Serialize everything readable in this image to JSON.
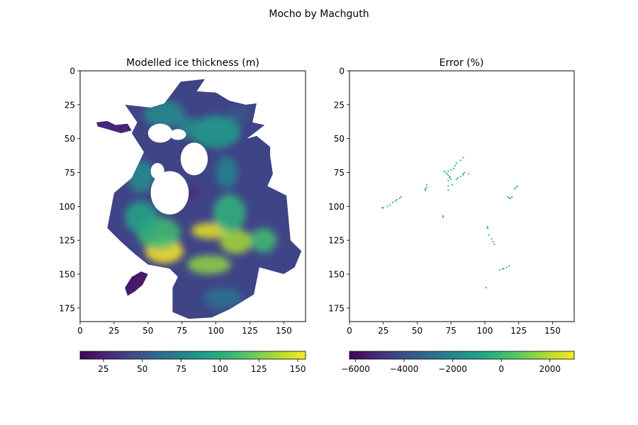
{
  "figure_title": "Mocho by Machguth",
  "colors": {
    "viridis": [
      "#440154",
      "#482878",
      "#3e4989",
      "#31688e",
      "#26828e",
      "#1f9e89",
      "#35b779",
      "#6ece58",
      "#b5de2b",
      "#fde725"
    ],
    "ice_mark": "#2db27d"
  },
  "chart_data": [
    {
      "type": "heatmap",
      "title": "Modelled ice thickness (m)",
      "xlim": [
        0,
        166
      ],
      "ylim": [
        185,
        0
      ],
      "xticks": [
        0,
        25,
        50,
        75,
        100,
        125,
        150
      ],
      "yticks": [
        0,
        25,
        50,
        75,
        100,
        125,
        150,
        175
      ],
      "colorbar": {
        "min": 10,
        "max": 155,
        "ticks": [
          25,
          50,
          75,
          100,
          125,
          150
        ],
        "tick_labels": [
          "25",
          "50",
          "75",
          "100",
          "125",
          "150"
        ]
      },
      "outline": [
        [
          42,
          38
        ],
        [
          33,
          25
        ],
        [
          52,
          27
        ],
        [
          62,
          24
        ],
        [
          74,
          8
        ],
        [
          92,
          6
        ],
        [
          86,
          15
        ],
        [
          100,
          16
        ],
        [
          110,
          22
        ],
        [
          122,
          25
        ],
        [
          130,
          24
        ],
        [
          127,
          38
        ],
        [
          136,
          40
        ],
        [
          123,
          50
        ],
        [
          130,
          48
        ],
        [
          140,
          56
        ],
        [
          140,
          63
        ],
        [
          142,
          76
        ],
        [
          138,
          85
        ],
        [
          152,
          92
        ],
        [
          155,
          125
        ],
        [
          163,
          133
        ],
        [
          158,
          145
        ],
        [
          150,
          150
        ],
        [
          132,
          145
        ],
        [
          128,
          165
        ],
        [
          110,
          176
        ],
        [
          97,
          182
        ],
        [
          80,
          183
        ],
        [
          68,
          178
        ],
        [
          68,
          160
        ],
        [
          72,
          152
        ],
        [
          66,
          146
        ],
        [
          50,
          143
        ],
        [
          40,
          135
        ],
        [
          30,
          126
        ],
        [
          20,
          116
        ],
        [
          25,
          90
        ],
        [
          38,
          79
        ],
        [
          47,
          60
        ],
        [
          38,
          46
        ]
      ],
      "holes": [
        {
          "center": [
            59,
            46
          ],
          "r": [
            9,
            7
          ]
        },
        {
          "center": [
            84,
            65
          ],
          "r": [
            10,
            12
          ]
        },
        {
          "center": [
            66,
            90
          ],
          "r": [
            14,
            16
          ]
        },
        {
          "center": [
            57,
            74
          ],
          "r": [
            5,
            6
          ]
        },
        {
          "center": [
            72,
            47
          ],
          "r": [
            6,
            4
          ]
        }
      ],
      "islands": [
        {
          "points": [
            [
              12,
              38
            ],
            [
              20,
              37
            ],
            [
              26,
              40
            ],
            [
              35,
              39
            ],
            [
              38,
              44
            ],
            [
              30,
              46
            ],
            [
              20,
              43
            ],
            [
              13,
              41
            ]
          ],
          "value": 25
        },
        {
          "points": [
            [
              38,
              152
            ],
            [
              45,
              148
            ],
            [
              50,
              150
            ],
            [
              46,
              158
            ],
            [
              40,
              163
            ],
            [
              35,
              166
            ],
            [
              33,
              160
            ]
          ],
          "value": 20
        }
      ],
      "blobs": [
        {
          "center": [
            62,
            133
          ],
          "r": [
            14,
            9
          ],
          "value": 155
        },
        {
          "center": [
            96,
            118
          ],
          "r": [
            14,
            6
          ],
          "value": 150
        },
        {
          "center": [
            115,
            126
          ],
          "r": [
            12,
            9
          ],
          "value": 135
        },
        {
          "center": [
            95,
            143
          ],
          "r": [
            16,
            7
          ],
          "value": 130
        },
        {
          "center": [
            58,
            120
          ],
          "r": [
            16,
            12
          ],
          "value": 110
        },
        {
          "center": [
            110,
            105
          ],
          "r": [
            12,
            14
          ],
          "value": 105
        },
        {
          "center": [
            135,
            125
          ],
          "r": [
            10,
            9
          ],
          "value": 110
        },
        {
          "center": [
            45,
            108
          ],
          "r": [
            12,
            12
          ],
          "value": 95
        },
        {
          "center": [
            100,
            45
          ],
          "r": [
            18,
            12
          ],
          "value": 90
        },
        {
          "center": [
            62,
            32
          ],
          "r": [
            15,
            10
          ],
          "value": 80
        },
        {
          "center": [
            80,
            42
          ],
          "r": [
            8,
            8
          ],
          "value": 80
        },
        {
          "center": [
            108,
            75
          ],
          "r": [
            8,
            12
          ],
          "value": 75
        },
        {
          "center": [
            45,
            78
          ],
          "r": [
            10,
            12
          ],
          "value": 80
        },
        {
          "center": [
            82,
            90
          ],
          "r": [
            6,
            6
          ],
          "value": 30
        },
        {
          "center": [
            105,
            168
          ],
          "r": [
            14,
            8
          ],
          "value": 65
        },
        {
          "center": [
            118,
            32
          ],
          "r": [
            8,
            6
          ],
          "value": 50
        }
      ]
    },
    {
      "type": "heatmap",
      "title": "Error (%)",
      "xlim": [
        0,
        166
      ],
      "ylim": [
        185,
        0
      ],
      "xticks": [
        0,
        25,
        50,
        75,
        100,
        125,
        150
      ],
      "yticks": [
        0,
        25,
        50,
        75,
        100,
        125,
        150,
        175
      ],
      "colorbar": {
        "min": -6250,
        "max": 3000,
        "ticks": [
          -6000,
          -4000,
          -2000,
          0,
          2000
        ],
        "tick_labels": [
          "−6000",
          "−4000",
          "−2000",
          "0",
          "2000"
        ]
      },
      "points": [
        [
          84,
          64
        ],
        [
          82,
          66
        ],
        [
          79,
          68
        ],
        [
          78,
          70
        ],
        [
          77,
          72
        ],
        [
          75,
          73
        ],
        [
          73,
          74
        ],
        [
          70,
          74
        ],
        [
          71,
          75
        ],
        [
          72,
          76
        ],
        [
          73,
          77
        ],
        [
          74,
          78
        ],
        [
          74,
          79
        ],
        [
          75,
          80
        ],
        [
          73,
          81
        ],
        [
          76,
          84
        ],
        [
          73,
          85
        ],
        [
          73,
          88
        ],
        [
          79,
          80
        ],
        [
          80,
          79
        ],
        [
          82,
          78
        ],
        [
          84,
          77
        ],
        [
          84,
          76
        ],
        [
          85,
          75
        ],
        [
          88,
          76
        ],
        [
          57,
          84
        ],
        [
          57,
          86
        ],
        [
          56,
          87
        ],
        [
          56,
          88
        ],
        [
          38,
          93
        ],
        [
          37,
          94
        ],
        [
          35,
          95
        ],
        [
          34,
          96
        ],
        [
          32,
          97
        ],
        [
          30,
          99
        ],
        [
          28,
          100
        ],
        [
          25,
          101
        ],
        [
          24,
          101
        ],
        [
          69,
          107
        ],
        [
          69,
          108
        ],
        [
          120,
          93
        ],
        [
          119,
          94
        ],
        [
          118,
          94
        ],
        [
          117,
          93
        ],
        [
          124,
          85
        ],
        [
          123,
          86
        ],
        [
          122,
          87
        ],
        [
          102,
          115
        ],
        [
          102,
          116
        ],
        [
          103,
          121
        ],
        [
          105,
          124
        ],
        [
          106,
          126
        ],
        [
          107,
          128
        ],
        [
          118,
          144
        ],
        [
          116,
          145
        ],
        [
          114,
          146
        ],
        [
          113,
          146
        ],
        [
          111,
          147
        ],
        [
          101,
          160
        ]
      ],
      "point_value": 0
    }
  ]
}
